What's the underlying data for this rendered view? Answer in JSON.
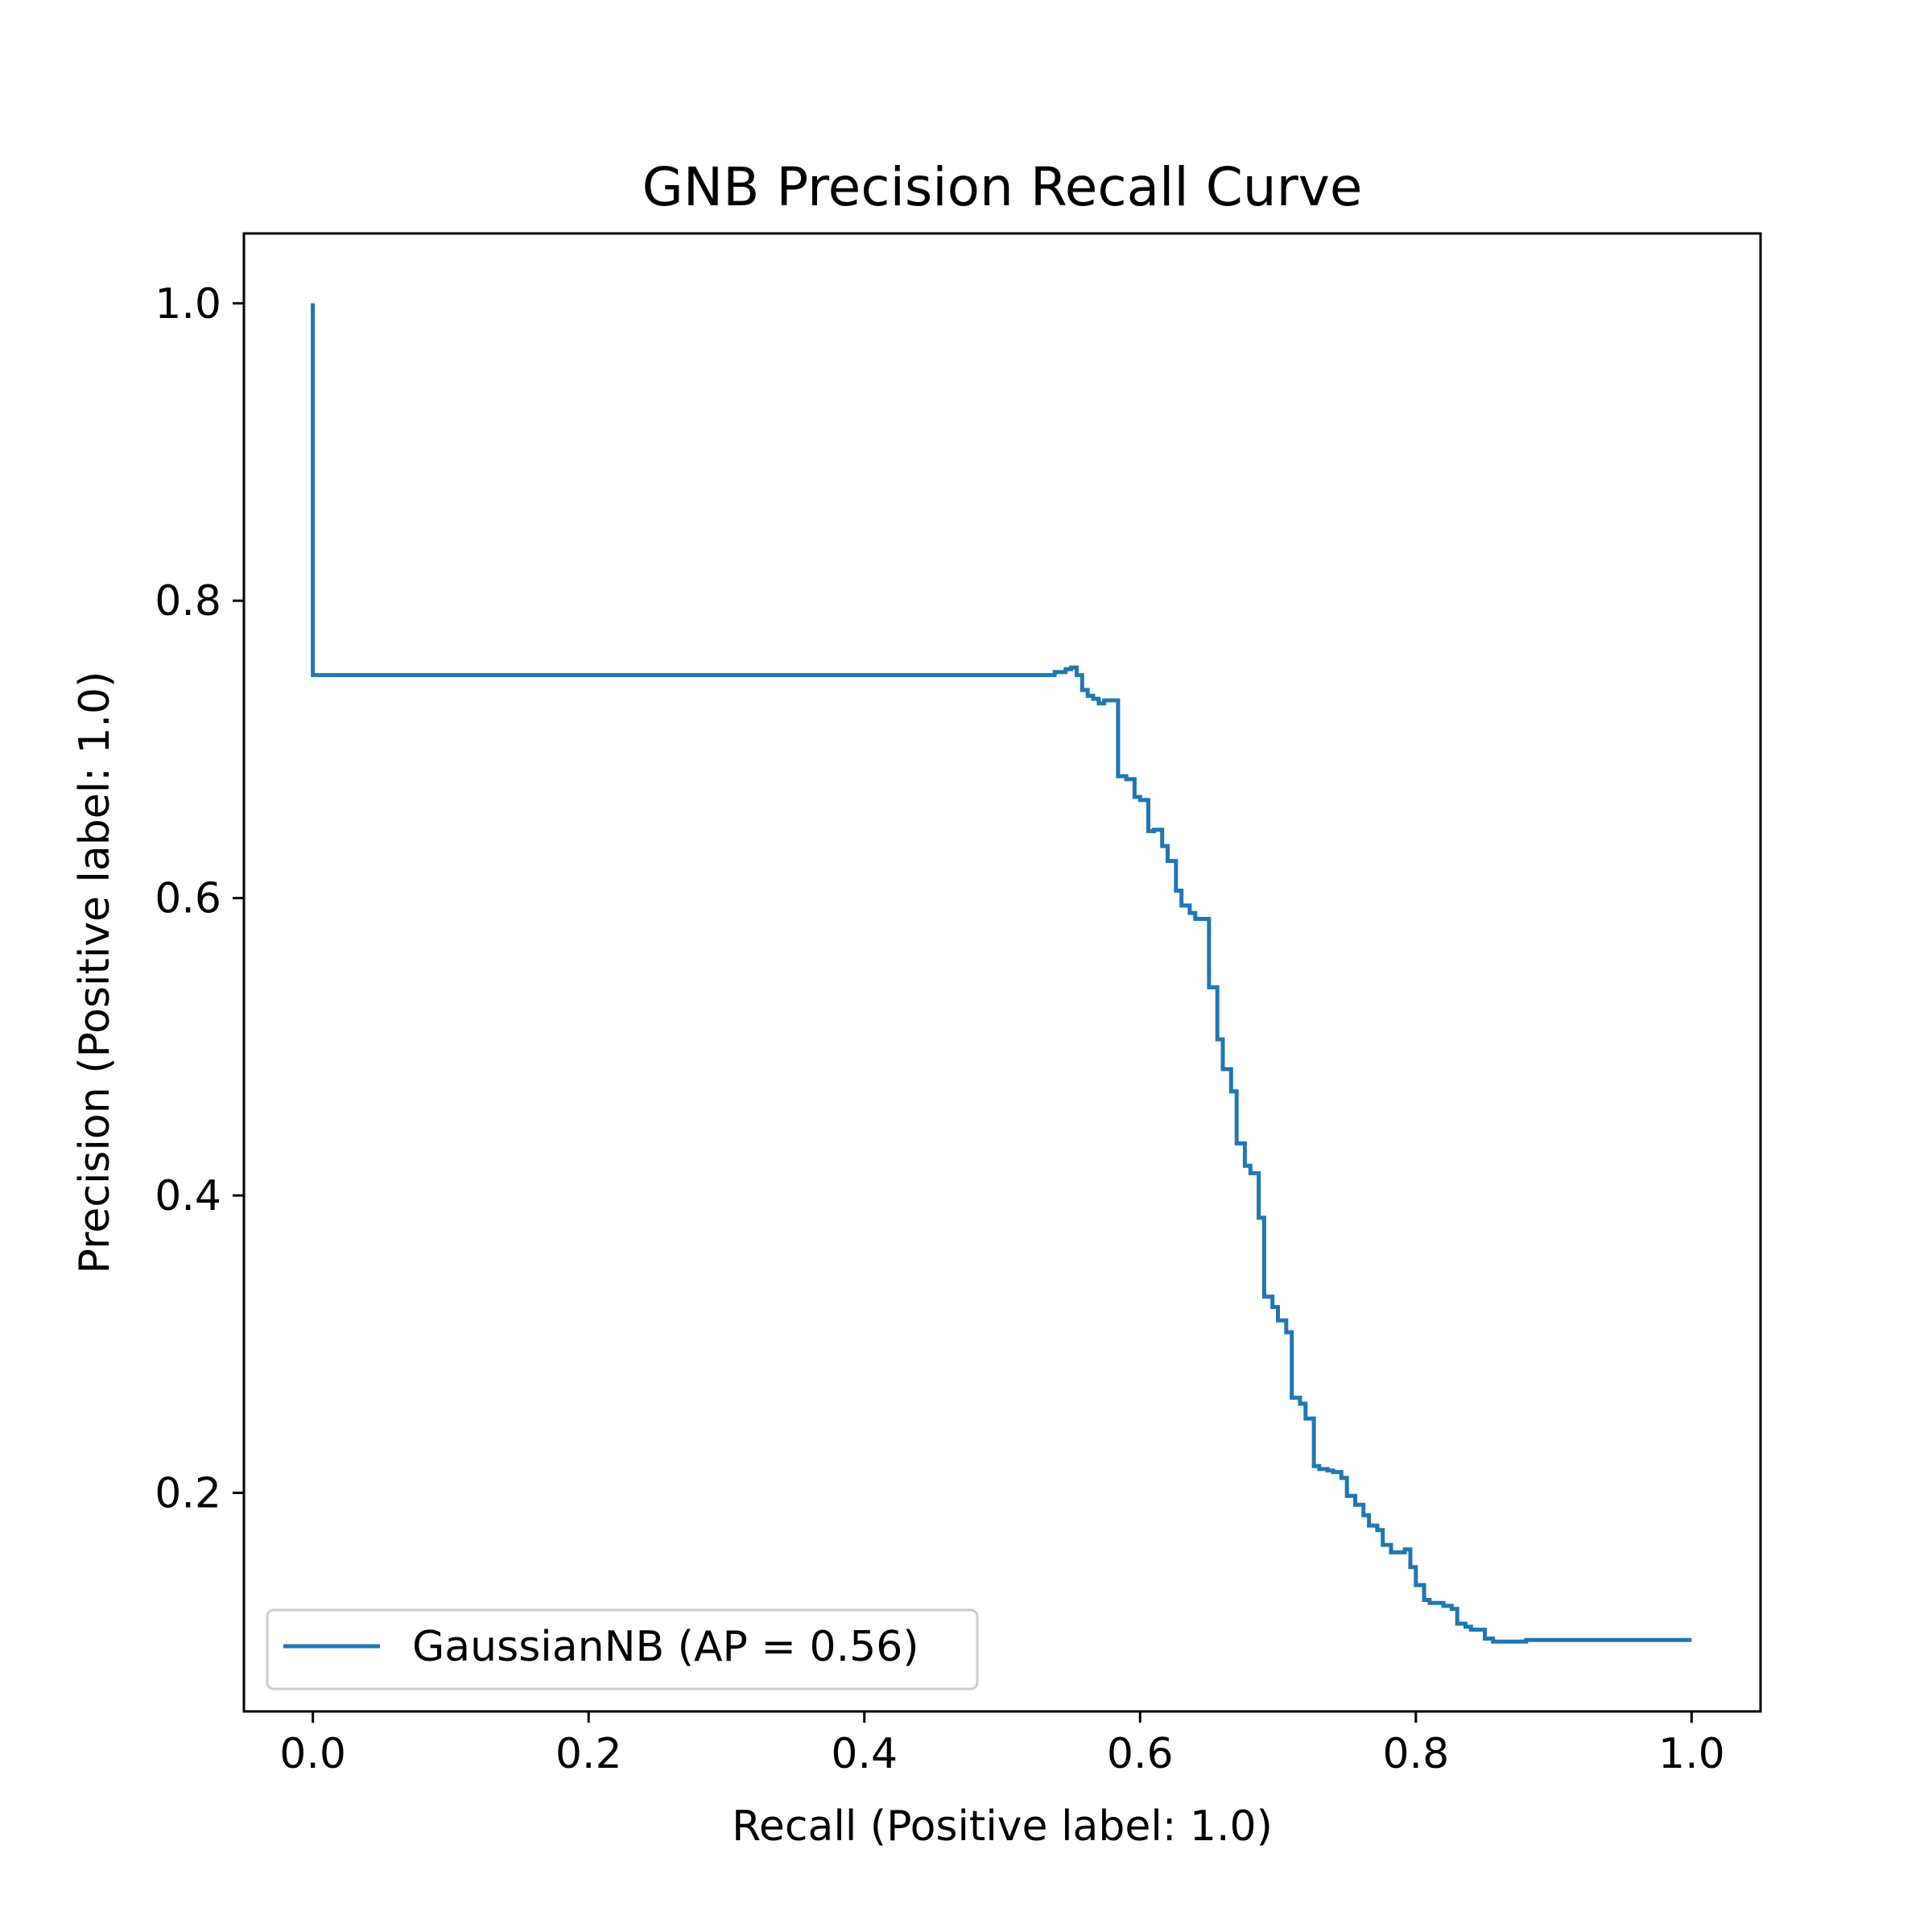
{
  "chart_data": {
    "type": "line",
    "title": "GNB Precision Recall Curve",
    "xlabel": "Recall (Positive label: 1.0)",
    "ylabel": "Precision (Positive label: 1.0)",
    "xlim": [
      -0.05,
      1.05
    ],
    "ylim": [
      0.053,
      1.047
    ],
    "xticks": [
      0.0,
      0.2,
      0.4,
      0.6,
      0.8,
      1.0
    ],
    "xtick_labels": [
      "0.0",
      "0.2",
      "0.4",
      "0.6",
      "0.8",
      "1.0"
    ],
    "yticks": [
      0.2,
      0.4,
      0.6,
      0.8,
      1.0
    ],
    "ytick_labels": [
      "0.2",
      "0.4",
      "0.6",
      "0.8",
      "1.0"
    ],
    "grid": false,
    "legend": {
      "position": "lower-left",
      "entries": [
        "GaussianNB (AP = 0.56)"
      ]
    },
    "series": [
      {
        "name": "GaussianNB (AP = 0.56)",
        "color": "#1f77b4",
        "drawstyle": "steps-post",
        "x": [
          0.0,
          0.0,
          0.535,
          0.538,
          0.542,
          0.546,
          0.55,
          0.554,
          0.558,
          0.562,
          0.566,
          0.57,
          0.574,
          0.58,
          0.584,
          0.59,
          0.596,
          0.6,
          0.606,
          0.61,
          0.616,
          0.62,
          0.626,
          0.63,
          0.636,
          0.64,
          0.646,
          0.65,
          0.656,
          0.66,
          0.666,
          0.67,
          0.676,
          0.68,
          0.686,
          0.69,
          0.696,
          0.7,
          0.706,
          0.71,
          0.716,
          0.72,
          0.726,
          0.73,
          0.736,
          0.74,
          0.746,
          0.75,
          0.756,
          0.762,
          0.766,
          0.772,
          0.776,
          0.782,
          0.786,
          0.792,
          0.796,
          0.8,
          0.806,
          0.81,
          0.816,
          0.82,
          0.826,
          0.83,
          0.836,
          0.84,
          0.846,
          0.85,
          0.856,
          0.86,
          0.866,
          0.87,
          0.876,
          0.88,
          0.886,
          0.89,
          0.896,
          0.9,
          0.906,
          0.91,
          0.916,
          0.92,
          0.926,
          0.93,
          0.936,
          0.94,
          0.946,
          0.95,
          0.956,
          0.96,
          0.966,
          0.97,
          0.976,
          0.98,
          0.986,
          0.99,
          0.996,
          1.0
        ],
        "y": [
          1.0,
          0.75,
          0.75,
          0.752,
          0.752,
          0.754,
          0.755,
          0.75,
          0.74,
          0.736,
          0.734,
          0.731,
          0.733,
          0.733,
          0.682,
          0.68,
          0.668,
          0.666,
          0.645,
          0.646,
          0.635,
          0.625,
          0.605,
          0.595,
          0.59,
          0.586,
          0.586,
          0.54,
          0.505,
          0.485,
          0.47,
          0.435,
          0.42,
          0.415,
          0.385,
          0.332,
          0.325,
          0.316,
          0.308,
          0.264,
          0.26,
          0.25,
          0.218,
          0.216,
          0.215,
          0.214,
          0.21,
          0.198,
          0.192,
          0.185,
          0.178,
          0.175,
          0.165,
          0.16,
          0.16,
          0.162,
          0.15,
          0.138,
          0.128,
          0.126,
          0.126,
          0.124,
          0.122,
          0.112,
          0.11,
          0.108,
          0.108,
          0.102,
          0.1,
          0.1,
          0.1,
          0.1,
          0.1,
          0.101,
          0.101,
          0.101,
          0.101,
          0.101,
          0.101,
          0.101,
          0.101,
          0.101,
          0.101,
          0.101,
          0.101,
          0.101,
          0.101,
          0.101,
          0.101,
          0.101,
          0.101,
          0.101,
          0.101,
          0.101,
          0.101,
          0.101,
          0.101,
          0.101
        ]
      }
    ]
  }
}
